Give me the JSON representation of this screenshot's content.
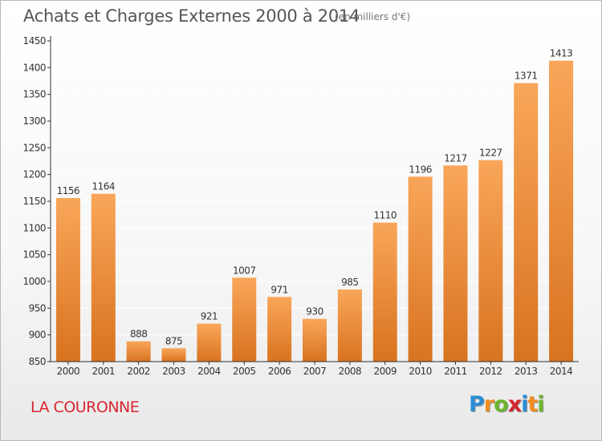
{
  "title": "Achats et Charges Externes 2000 à 2014",
  "unit_label": "(en milliers d'€)",
  "footer": {
    "commune": "LA COURONNE"
  },
  "logo": {
    "text": "Proxiti",
    "letters": [
      "P",
      "r",
      "o",
      "x",
      "i",
      "t",
      "i"
    ],
    "colors": [
      "#2a8dd4",
      "#f28c1e",
      "#6cb52d",
      "#d6262e",
      "#2a8dd4",
      "#f28c1e",
      "#6cb52d"
    ]
  },
  "colors": {
    "bar_light": "#f9a65a",
    "bar_dark": "#d8731f",
    "axis": "#333333",
    "grid": "#ffffff"
  },
  "chart_data": {
    "type": "bar",
    "title": "Achats et Charges Externes 2000 à 2014",
    "subtitle": "(en milliers d'€)",
    "xlabel": "",
    "ylabel": "",
    "categories": [
      "2000",
      "2001",
      "2002",
      "2003",
      "2004",
      "2005",
      "2006",
      "2007",
      "2008",
      "2009",
      "2010",
      "2011",
      "2012",
      "2013",
      "2014"
    ],
    "values": [
      1156,
      1164,
      888,
      875,
      921,
      1007,
      971,
      930,
      985,
      1110,
      1196,
      1217,
      1227,
      1371,
      1413
    ],
    "ylim": [
      850,
      1450
    ],
    "yticks": [
      850,
      900,
      950,
      1000,
      1050,
      1100,
      1150,
      1200,
      1250,
      1300,
      1350,
      1400,
      1450
    ],
    "grid": true,
    "legend": "none"
  }
}
